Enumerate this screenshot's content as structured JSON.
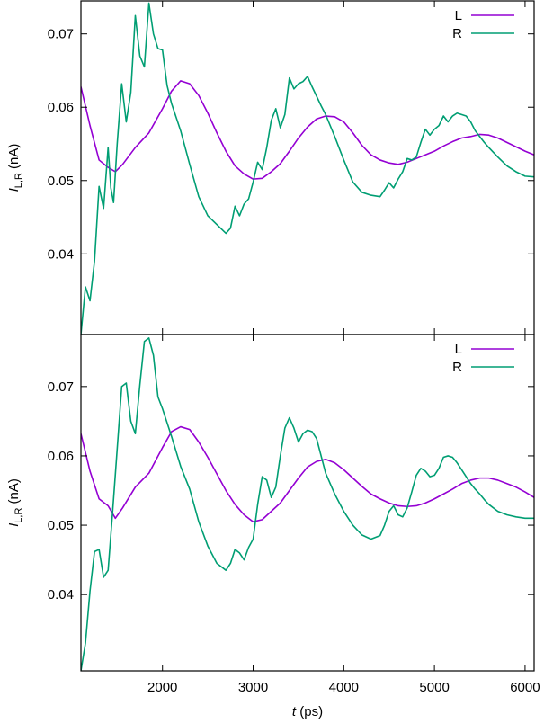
{
  "chart_data": [
    {
      "type": "line",
      "panel": "top",
      "xlim": [
        1100,
        6100
      ],
      "ylim": [
        0.029,
        0.0745
      ],
      "yticks": [
        0.04,
        0.05,
        0.06,
        0.07
      ],
      "ytick_labels": [
        "0.04",
        "0.05",
        "0.06",
        "0.07"
      ],
      "ylabel": {
        "main": "I",
        "sub": "L,R",
        "unit": " (nA)"
      },
      "legend_position": "top-right",
      "series": [
        {
          "name": "L",
          "color": "#9400d3",
          "x": [
            1100,
            1200,
            1300,
            1400,
            1480,
            1560,
            1700,
            1850,
            2000,
            2100,
            2200,
            2300,
            2400,
            2500,
            2600,
            2700,
            2800,
            2900,
            3000,
            3100,
            3200,
            3300,
            3400,
            3500,
            3600,
            3700,
            3800,
            3900,
            4000,
            4100,
            4200,
            4300,
            4400,
            4500,
            4600,
            4700,
            4800,
            4900,
            5000,
            5100,
            5200,
            5300,
            5400,
            5500,
            5600,
            5700,
            5800,
            5900,
            6000,
            6100
          ],
          "y": [
            0.0628,
            0.0575,
            0.0528,
            0.0518,
            0.0512,
            0.0522,
            0.0545,
            0.0565,
            0.0598,
            0.0622,
            0.0636,
            0.0632,
            0.0616,
            0.0592,
            0.0565,
            0.054,
            0.052,
            0.0509,
            0.0502,
            0.0503,
            0.0512,
            0.0523,
            0.054,
            0.0558,
            0.0573,
            0.0584,
            0.0588,
            0.0587,
            0.058,
            0.0565,
            0.0548,
            0.0535,
            0.0528,
            0.0524,
            0.0522,
            0.0525,
            0.053,
            0.0535,
            0.054,
            0.0547,
            0.0553,
            0.0558,
            0.056,
            0.0563,
            0.0562,
            0.0558,
            0.0552,
            0.0546,
            0.054,
            0.0535
          ]
        },
        {
          "name": "R",
          "color": "#009e73",
          "x": [
            1100,
            1150,
            1200,
            1250,
            1300,
            1350,
            1400,
            1430,
            1460,
            1500,
            1550,
            1600,
            1650,
            1700,
            1750,
            1800,
            1850,
            1900,
            1950,
            2000,
            2050,
            2100,
            2200,
            2300,
            2400,
            2500,
            2600,
            2700,
            2750,
            2800,
            2850,
            2900,
            2950,
            3000,
            3050,
            3100,
            3150,
            3200,
            3250,
            3300,
            3350,
            3400,
            3450,
            3500,
            3550,
            3600,
            3650,
            3700,
            3750,
            3800,
            3900,
            4000,
            4100,
            4200,
            4300,
            4400,
            4450,
            4500,
            4550,
            4600,
            4650,
            4700,
            4750,
            4800,
            4850,
            4900,
            4950,
            5000,
            5050,
            5100,
            5150,
            5200,
            5250,
            5300,
            5350,
            5400,
            5450,
            5500,
            5550,
            5600,
            5700,
            5800,
            5900,
            6000,
            6100
          ],
          "y": [
            0.029,
            0.0355,
            0.0336,
            0.039,
            0.0492,
            0.0462,
            0.0545,
            0.049,
            0.047,
            0.055,
            0.0632,
            0.058,
            0.062,
            0.0725,
            0.067,
            0.0655,
            0.0742,
            0.07,
            0.068,
            0.0678,
            0.063,
            0.0605,
            0.0568,
            0.0522,
            0.0478,
            0.0452,
            0.044,
            0.0428,
            0.0435,
            0.0465,
            0.0452,
            0.0468,
            0.0475,
            0.0498,
            0.0525,
            0.0515,
            0.0545,
            0.0582,
            0.0598,
            0.0572,
            0.059,
            0.064,
            0.0625,
            0.0632,
            0.0635,
            0.0642,
            0.0628,
            0.0615,
            0.0602,
            0.059,
            0.056,
            0.0528,
            0.0498,
            0.0484,
            0.048,
            0.0478,
            0.0487,
            0.0497,
            0.049,
            0.0502,
            0.0512,
            0.053,
            0.0528,
            0.0532,
            0.0552,
            0.057,
            0.0562,
            0.057,
            0.0575,
            0.0588,
            0.058,
            0.0588,
            0.0592,
            0.059,
            0.0588,
            0.058,
            0.0568,
            0.056,
            0.0552,
            0.0545,
            0.0532,
            0.052,
            0.0512,
            0.0506,
            0.0505
          ]
        }
      ]
    },
    {
      "type": "line",
      "panel": "bottom",
      "xlim": [
        1100,
        6100
      ],
      "ylim": [
        0.029,
        0.0775
      ],
      "yticks": [
        0.04,
        0.05,
        0.06,
        0.07
      ],
      "ytick_labels": [
        "0.04",
        "0.05",
        "0.06",
        "0.07"
      ],
      "xticks": [
        2000,
        3000,
        4000,
        5000,
        6000
      ],
      "xtick_labels": [
        "2000",
        "3000",
        "4000",
        "5000",
        "6000"
      ],
      "xlabel": {
        "main": "t",
        "unit": " (ps)"
      },
      "ylabel": {
        "main": "I",
        "sub": "L,R",
        "unit": " (nA)"
      },
      "legend_position": "top-right",
      "series": [
        {
          "name": "L",
          "color": "#9400d3",
          "x": [
            1100,
            1200,
            1300,
            1400,
            1480,
            1560,
            1700,
            1850,
            2000,
            2100,
            2200,
            2300,
            2400,
            2500,
            2600,
            2700,
            2800,
            2900,
            3000,
            3100,
            3200,
            3300,
            3400,
            3500,
            3600,
            3700,
            3800,
            3900,
            4000,
            4100,
            4200,
            4300,
            4400,
            4500,
            4600,
            4700,
            4800,
            4900,
            5000,
            5100,
            5200,
            5300,
            5400,
            5500,
            5600,
            5700,
            5800,
            5900,
            6000,
            6100
          ],
          "y": [
            0.0632,
            0.0578,
            0.0538,
            0.0528,
            0.051,
            0.0525,
            0.0555,
            0.0575,
            0.0612,
            0.0635,
            0.0642,
            0.0638,
            0.062,
            0.0598,
            0.0574,
            0.055,
            0.053,
            0.0515,
            0.0505,
            0.0508,
            0.052,
            0.0532,
            0.055,
            0.0568,
            0.0584,
            0.0592,
            0.0595,
            0.059,
            0.058,
            0.0568,
            0.0556,
            0.0545,
            0.0538,
            0.0532,
            0.0528,
            0.0527,
            0.0528,
            0.0532,
            0.0538,
            0.0545,
            0.0552,
            0.056,
            0.0565,
            0.0568,
            0.0568,
            0.0565,
            0.056,
            0.0555,
            0.0548,
            0.054
          ]
        },
        {
          "name": "R",
          "color": "#009e73",
          "x": [
            1100,
            1150,
            1200,
            1250,
            1300,
            1350,
            1400,
            1450,
            1500,
            1550,
            1600,
            1650,
            1700,
            1750,
            1800,
            1850,
            1900,
            1950,
            2000,
            2100,
            2200,
            2300,
            2400,
            2500,
            2600,
            2700,
            2750,
            2800,
            2850,
            2900,
            2950,
            3000,
            3050,
            3100,
            3150,
            3200,
            3250,
            3300,
            3350,
            3400,
            3450,
            3500,
            3550,
            3600,
            3650,
            3700,
            3800,
            3900,
            4000,
            4100,
            4200,
            4300,
            4400,
            4450,
            4500,
            4550,
            4600,
            4650,
            4700,
            4750,
            4800,
            4850,
            4900,
            4950,
            5000,
            5050,
            5100,
            5150,
            5200,
            5250,
            5300,
            5350,
            5400,
            5450,
            5500,
            5550,
            5600,
            5700,
            5800,
            5900,
            6000,
            6100
          ],
          "y": [
            0.029,
            0.033,
            0.0405,
            0.0462,
            0.0465,
            0.0425,
            0.0435,
            0.052,
            0.061,
            0.07,
            0.0705,
            0.065,
            0.0632,
            0.0702,
            0.0765,
            0.077,
            0.0745,
            0.0685,
            0.0668,
            0.0628,
            0.0585,
            0.0552,
            0.0505,
            0.047,
            0.0445,
            0.0435,
            0.0445,
            0.0465,
            0.046,
            0.045,
            0.0468,
            0.048,
            0.053,
            0.057,
            0.0565,
            0.054,
            0.0555,
            0.06,
            0.064,
            0.0655,
            0.064,
            0.062,
            0.0632,
            0.0637,
            0.0635,
            0.0625,
            0.0575,
            0.0545,
            0.052,
            0.05,
            0.0486,
            0.048,
            0.0485,
            0.05,
            0.052,
            0.0528,
            0.0515,
            0.0512,
            0.0525,
            0.0548,
            0.0572,
            0.0582,
            0.0578,
            0.057,
            0.0572,
            0.0582,
            0.0598,
            0.06,
            0.0598,
            0.059,
            0.058,
            0.057,
            0.056,
            0.0552,
            0.0545,
            0.0537,
            0.053,
            0.052,
            0.0515,
            0.0512,
            0.051,
            0.051
          ]
        }
      ]
    }
  ]
}
